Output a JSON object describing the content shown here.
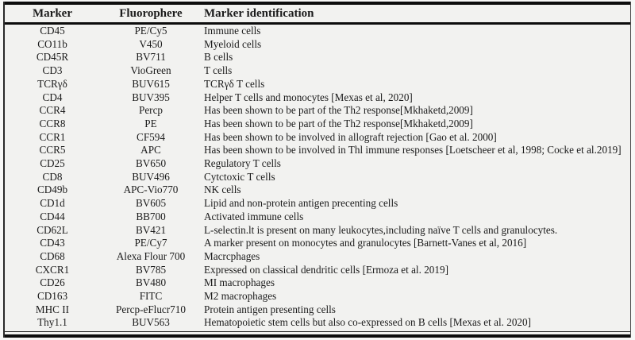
{
  "table": {
    "columns": [
      {
        "key": "marker",
        "label": "Marker"
      },
      {
        "key": "fluorophore",
        "label": "Fluorophere"
      },
      {
        "key": "identification",
        "label": "Marker identification"
      }
    ],
    "rows": [
      {
        "marker": "CD45",
        "fluorophore": "PE/Cy5",
        "identification": "Immune cells"
      },
      {
        "marker": "CO11b",
        "fluorophore": "V450",
        "identification": "Myeloid cells"
      },
      {
        "marker": "CD45R",
        "fluorophore": "BV711",
        "identification": "B cells"
      },
      {
        "marker": "CD3",
        "fluorophore": "VioGreen",
        "identification": "T cells"
      },
      {
        "marker": "TCRγδ",
        "fluorophore": "BUV615",
        "identification": "TCRγδ T cells"
      },
      {
        "marker": "CD4",
        "fluorophore": "BUV395",
        "identification": "Helper T cells and monocytes [Mexas et al, 2020]"
      },
      {
        "marker": "CCR4",
        "fluorophore": "Percp",
        "identification": "Has been shown to be part of the Th2 response[Mkhaketd,2009]"
      },
      {
        "marker": "CCR8",
        "fluorophore": "PE",
        "identification": "Has been shown to be part of the Th2 response[Mkhaketd,2009]"
      },
      {
        "marker": "CCR1",
        "fluorophore": "CF594",
        "identification": "Has been shown to be involved in allograft rejection [Gao et al. 2000]"
      },
      {
        "marker": "CCR5",
        "fluorophore": "APC",
        "identification": "Has been shown to be involved in Thl immune responses [Loetscheer et al, 1998; Cocke et al.2019]"
      },
      {
        "marker": "CD25",
        "fluorophore": "BV650",
        "identification": "Regulatory T cells"
      },
      {
        "marker": "CD8",
        "fluorophore": "BUV496",
        "identification": "Cytctoxic T cells"
      },
      {
        "marker": "CD49b",
        "fluorophore": "APC-Vio770",
        "identification": "NK cells"
      },
      {
        "marker": "CD1d",
        "fluorophore": "BV605",
        "identification": "Lipid and non-protein antigen precenting cells"
      },
      {
        "marker": "CD44",
        "fluorophore": "BB700",
        "identification": "Activated immune cells"
      },
      {
        "marker": "CD62L",
        "fluorophore": "BV421",
        "identification": "L-selectin.lt is present on many leukocytes,including naïve T cells and granulocytes."
      },
      {
        "marker": "CD43",
        "fluorophore": "PE/Cy7",
        "identification": "A marker present on monocytes and granulocytes [Barnett-Vanes et al, 2016]"
      },
      {
        "marker": "CD68",
        "fluorophore": "Alexa Flour 700",
        "identification": "Macrcphages"
      },
      {
        "marker": "CXCR1",
        "fluorophore": "BV785",
        "identification": "Expressed on classical dendritic cells [Ermoza et al. 2019]"
      },
      {
        "marker": "CD26",
        "fluorophore": "BV480",
        "identification": "MI macrophages"
      },
      {
        "marker": "CD163",
        "fluorophore": "FITC",
        "identification": "M2 macrophages"
      },
      {
        "marker": "MHC II",
        "fluorophore": "Percp-eFlucr710",
        "identification": "Protein antigen presenting cells"
      },
      {
        "marker": "Thy1.1",
        "fluorophore": "BUV563",
        "identification": "Hematopoietic stem cells but also co-expressed on B cells [Mexas et al. 2020]"
      }
    ]
  },
  "colors": {
    "background": "#f2f2f0",
    "rule": "#0d0d0d",
    "text": "#1b1b1b"
  }
}
